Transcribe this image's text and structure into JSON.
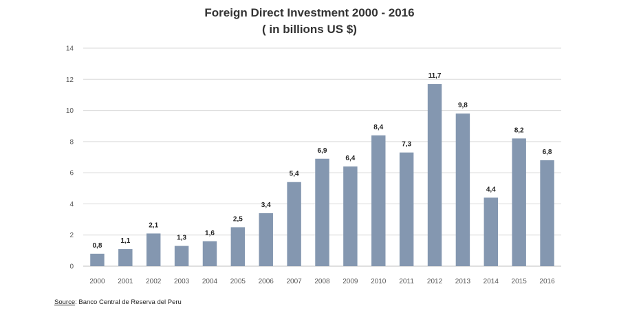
{
  "chart_data": {
    "type": "bar",
    "title": "Foreign Direct Investment 2000 - 2016",
    "subtitle": "( in billions US $)",
    "categories": [
      "2000",
      "2001",
      "2002",
      "2003",
      "2004",
      "2005",
      "2006",
      "2007",
      "2008",
      "2009",
      "2010",
      "2011",
      "2012",
      "2013",
      "2014",
      "2015",
      "2016"
    ],
    "values": [
      0.8,
      1.1,
      2.1,
      1.3,
      1.6,
      2.5,
      3.4,
      5.4,
      6.9,
      6.4,
      8.4,
      7.3,
      11.7,
      9.8,
      4.4,
      8.2,
      6.8
    ],
    "data_labels": [
      "0,8",
      "1,1",
      "2,1",
      "1,3",
      "1,6",
      "2,5",
      "3,4",
      "5,4",
      "6,9",
      "6,4",
      "8,4",
      "7,3",
      "11,7",
      "9,8",
      "4,4",
      "8,2",
      "6,8"
    ],
    "ylim": [
      0,
      14
    ],
    "yticks": [
      "0",
      "2",
      "4",
      "6",
      "8",
      "10",
      "12",
      "14"
    ],
    "xlabel": "",
    "ylabel": "",
    "grid": true,
    "bar_color": "#8497b0",
    "grid_color": "#d9d9d9"
  },
  "source": {
    "label": "Source",
    "text": ": Banco Central de Reserva del Peru"
  }
}
